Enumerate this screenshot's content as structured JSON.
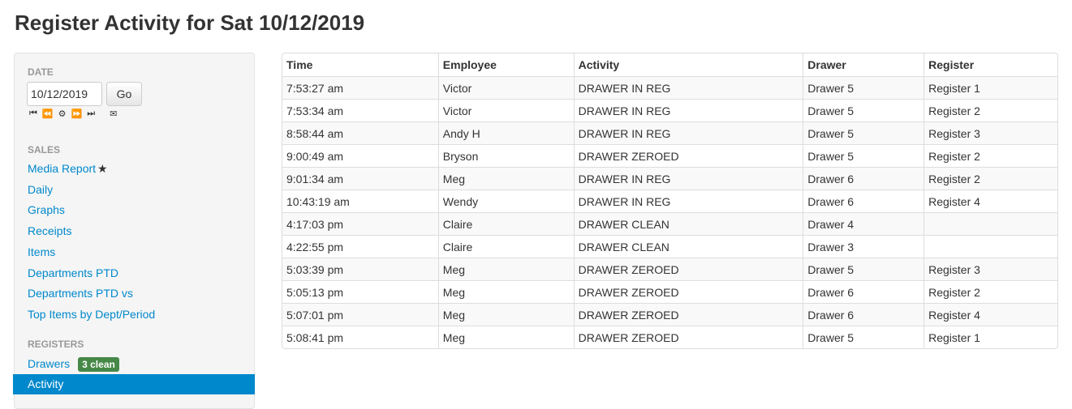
{
  "title": "Register Activity for Sat 10/12/2019",
  "sidebar": {
    "date_header": "DATE",
    "date_value": "10/12/2019",
    "go_label": "Go",
    "nav_icons": [
      "first-icon",
      "rewind-icon",
      "gear-icon",
      "fast-forward-icon",
      "last-icon",
      "email-icon"
    ],
    "sales_header": "SALES",
    "sales_items": [
      "Media Report",
      "Daily",
      "Graphs",
      "Receipts",
      "Items",
      "Departments PTD",
      "Departments PTD vs",
      "Top Items by Dept/Period"
    ],
    "registers_header": "REGISTERS",
    "drawers_label": "Drawers",
    "drawers_badge": "3 clean",
    "activity_label": "Activity",
    "colors": {
      "link": "#0088cc",
      "active": "#0088cc",
      "badge": "#468847"
    }
  },
  "table": {
    "columns": [
      "Time",
      "Employee",
      "Activity",
      "Drawer",
      "Register"
    ],
    "rows": [
      [
        "7:53:27 am",
        "Victor",
        "DRAWER IN REG",
        "Drawer 5",
        "Register 1"
      ],
      [
        "7:53:34 am",
        "Victor",
        "DRAWER IN REG",
        "Drawer 5",
        "Register 2"
      ],
      [
        "8:58:44 am",
        "Andy H",
        "DRAWER IN REG",
        "Drawer 5",
        "Register 3"
      ],
      [
        "9:00:49 am",
        "Bryson",
        "DRAWER ZEROED",
        "Drawer 5",
        "Register 2"
      ],
      [
        "9:01:34 am",
        "Meg",
        "DRAWER IN REG",
        "Drawer 6",
        "Register 2"
      ],
      [
        "10:43:19 am",
        "Wendy",
        "DRAWER IN REG",
        "Drawer 6",
        "Register 4"
      ],
      [
        "4:17:03 pm",
        "Claire",
        "DRAWER CLEAN",
        "Drawer 4",
        ""
      ],
      [
        "4:22:55 pm",
        "Claire",
        "DRAWER CLEAN",
        "Drawer 3",
        ""
      ],
      [
        "5:03:39 pm",
        "Meg",
        "DRAWER ZEROED",
        "Drawer 5",
        "Register 3"
      ],
      [
        "5:05:13 pm",
        "Meg",
        "DRAWER ZEROED",
        "Drawer 6",
        "Register 2"
      ],
      [
        "5:07:01 pm",
        "Meg",
        "DRAWER ZEROED",
        "Drawer 6",
        "Register 4"
      ],
      [
        "5:08:41 pm",
        "Meg",
        "DRAWER ZEROED",
        "Drawer 5",
        "Register 1"
      ]
    ]
  }
}
